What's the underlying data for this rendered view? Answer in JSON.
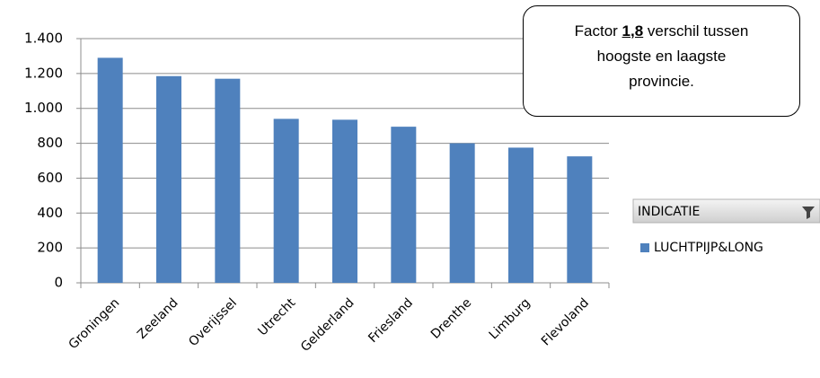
{
  "chart_data": {
    "type": "bar",
    "categories": [
      "Groningen",
      "Zeeland",
      "Overijssel",
      "Utrecht",
      "Gelderland",
      "Friesland",
      "Drenthe",
      "Limburg",
      "Flevoland"
    ],
    "series": [
      {
        "name": "LUCHTPIJP&LONG",
        "color": "#4f81bd",
        "values": [
          1290,
          1185,
          1170,
          940,
          935,
          895,
          800,
          775,
          725
        ]
      }
    ],
    "ylim": [
      0,
      1400
    ],
    "yticks": [
      0,
      200,
      400,
      600,
      800,
      {
        "value": 1000,
        "label": "1.000"
      },
      {
        "value": 1200,
        "label": "1.200"
      },
      {
        "value": 1400,
        "label": "1.400"
      }
    ],
    "grid": true,
    "legend_title": "INDICATIE",
    "annotation": {
      "before": "Factor ",
      "emphasis": "1,8",
      "after": " verschil tussen hoogste en laagste provincie."
    }
  }
}
